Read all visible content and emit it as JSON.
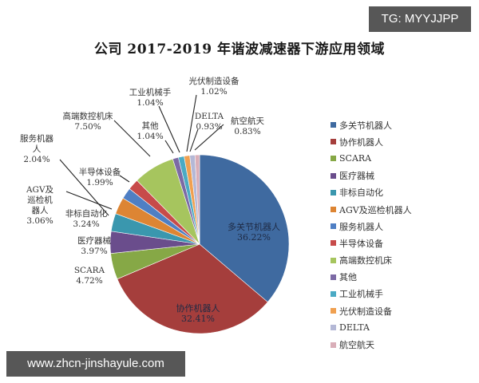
{
  "watermarks": {
    "top_right": "TG: MYYJJPP",
    "bottom_left": "www.zhcn-jinshayule.com"
  },
  "chart_data": {
    "type": "pie",
    "title": "公司 2017-2019 年谐波减速器下游应用领域",
    "legend_position": "right",
    "start_angle": "12 o'clock, clockwise",
    "categories": [
      "多关节机器人",
      "协作机器人",
      "SCARA",
      "医疗器械",
      "非标自动化",
      "AGV及巡检机器人",
      "服务机器人",
      "半导体设备",
      "高端数控机床",
      "其他",
      "工业机械手",
      "光伏制造设备",
      "DELTA",
      "航空航天"
    ],
    "values": [
      36.22,
      32.41,
      4.72,
      3.97,
      3.24,
      3.06,
      2.04,
      1.99,
      7.5,
      1.04,
      1.04,
      1.02,
      0.93,
      0.83
    ],
    "labels": [
      "36.22%",
      "32.41%",
      "4.72%",
      "3.97%",
      "3.24%",
      "3.06%",
      "2.04%",
      "1.99%",
      "7.50%",
      "1.04%",
      "1.04%",
      "1.02%",
      "0.93%",
      "0.83%"
    ],
    "colors": [
      "#3F6AA0",
      "#A53E3C",
      "#86A846",
      "#6A4D8C",
      "#3A97AE",
      "#DD8533",
      "#4F7FC4",
      "#C74B4A",
      "#A6C55E",
      "#7C6AA5",
      "#4BAAC4",
      "#F0A050",
      "#B4B8D6",
      "#D9AEB8"
    ]
  },
  "pie_labels": [
    {
      "name": "多关节机器人",
      "value": "36.22%",
      "inside": true
    },
    {
      "name": "协作机器人",
      "value": "32.41%",
      "inside": true
    },
    {
      "name": "SCARA",
      "value": "4.72%"
    },
    {
      "name": "医疗器械",
      "value": "3.97%"
    },
    {
      "name": "非标自动化",
      "value": "3.24%"
    },
    {
      "name": "AGV及\n巡检机\n器人",
      "value": "3.06%"
    },
    {
      "name": "服务机器\n人",
      "value": "2.04%"
    },
    {
      "name": "半导体设备",
      "value": "1.99%"
    },
    {
      "name": "高端数控机床",
      "value": "7.50%"
    },
    {
      "name": "其他",
      "value": "1.04%"
    },
    {
      "name": "工业机械手",
      "value": "1.04%"
    },
    {
      "name": "光伏制造设备",
      "value": "1.02%"
    },
    {
      "name": "DELTA",
      "value": "0.93%"
    },
    {
      "name": "航空航天",
      "value": "0.83%"
    }
  ]
}
